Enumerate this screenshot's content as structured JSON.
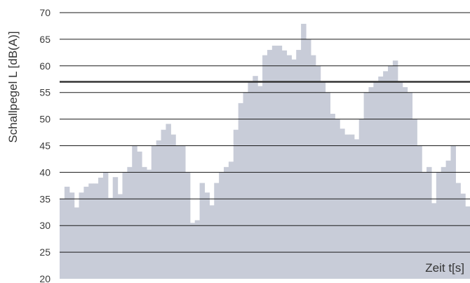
{
  "chart_data": {
    "type": "bar",
    "title": "",
    "xlabel": "Zeit t[s]",
    "ylabel": "Schallpegel L [dB(A)]",
    "ylim": [
      20,
      70
    ],
    "yticks": [
      20,
      25,
      30,
      35,
      40,
      45,
      50,
      55,
      60,
      65,
      70
    ],
    "grid": true,
    "reference_line": 57,
    "bar_color": "#c8ccd8",
    "grid_color": "#1a1a1a",
    "series": [
      {
        "values": [
          35,
          37.3,
          36.2,
          33.4,
          36.2,
          37.3,
          37.9,
          37.9,
          39,
          40,
          35.2,
          39.1,
          35.9,
          40,
          41,
          45,
          43.9,
          41,
          40.5,
          45,
          46,
          48,
          49.1,
          47.1,
          45,
          45,
          40,
          30.5,
          31,
          38,
          36.2,
          33.8,
          38,
          40,
          41,
          42,
          48,
          53,
          55,
          57,
          58.1,
          56.2,
          62,
          63,
          63.8,
          63.8,
          62.9,
          62,
          61.2,
          63,
          67.9,
          65,
          62,
          60,
          57,
          55,
          51,
          50,
          48.2,
          47.1,
          47.1,
          46.2,
          50,
          55,
          56,
          57,
          58,
          59,
          60,
          61,
          57,
          56,
          55,
          50,
          45,
          40,
          41,
          34.2,
          40,
          41,
          42.2,
          45,
          38,
          36,
          33.6
        ]
      }
    ]
  }
}
